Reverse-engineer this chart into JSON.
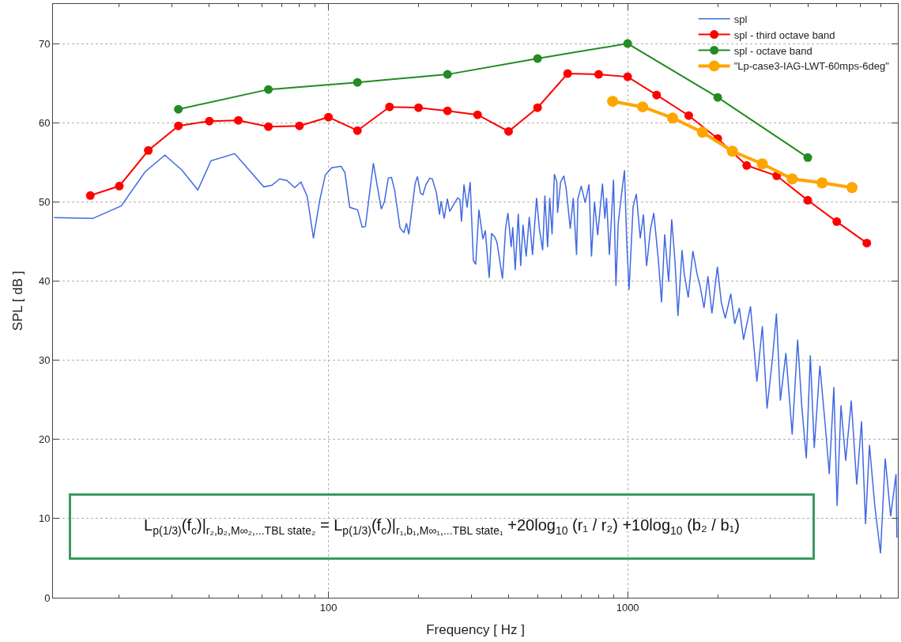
{
  "chart_data": {
    "type": "line",
    "xlabel": "Frequency [ Hz ]",
    "ylabel": "SPL [ dB ]",
    "log": "x",
    "grid": true,
    "legend": "top right",
    "marker": "circle",
    "xlim": [
      12,
      8000
    ],
    "ylim": [
      0,
      75
    ],
    "xticks": [
      {
        "value": 20,
        "label": null
      },
      {
        "value": 30,
        "label": null
      },
      {
        "value": 40,
        "label": null
      },
      {
        "value": 50,
        "label": null
      },
      {
        "value": 60,
        "label": null
      },
      {
        "value": 70,
        "label": null
      },
      {
        "value": 80,
        "label": null
      },
      {
        "value": 90,
        "label": null
      },
      100,
      {
        "value": 200,
        "label": null
      },
      {
        "value": 300,
        "label": null
      },
      {
        "value": 400,
        "label": null
      },
      {
        "value": 500,
        "label": null
      },
      {
        "value": 600,
        "label": null
      },
      {
        "value": 700,
        "label": null
      },
      {
        "value": 800,
        "label": null
      },
      {
        "value": 900,
        "label": null
      },
      1000,
      {
        "value": 2000,
        "label": null
      },
      {
        "value": 3000,
        "label": null
      },
      {
        "value": 4000,
        "label": null
      },
      {
        "value": 5000,
        "label": null
      },
      {
        "value": 6000,
        "label": null
      },
      {
        "value": 7000,
        "label": null
      },
      {
        "value": 8000,
        "label": null
      }
    ],
    "yticks": [
      0,
      10,
      20,
      30,
      40,
      50,
      60,
      70
    ],
    "series": [
      {
        "name": "spl",
        "color": "#4169e1",
        "marker": "none",
        "x": [
          12.1,
          16.3,
          20.3,
          24.4,
          28.4,
          32.4,
          36.6,
          40.5,
          48.6,
          60.8,
          64.7,
          68.7,
          72.6,
          77.1,
          80.9,
          84.9,
          89.1,
          93.5,
          97.6,
          102.4,
          110.2,
          113.5,
          117.8,
          125.1,
          129.7,
          132.9,
          141.3,
          150.1,
          153.8,
          158.5,
          162.4,
          166.4,
          173.5,
          178.9,
          182.3,
          185.6,
          194.8,
          198.3,
          203.1,
          206.9,
          211.8,
          218.3,
          222.4,
          229.4,
          235.2,
          237.9,
          243.7,
          249.7,
          254.3,
          270.2,
          275.0,
          278.4,
          283.8,
          290.6,
          297.7,
          305,
          310.6,
          318.3,
          328.3,
          334.4,
          344.6,
          350.8,
          359.3,
          365.8,
          381.7,
          391,
          398,
          408,
          413,
          421,
          431,
          439,
          447,
          458,
          469,
          481,
          496,
          507,
          520,
          529,
          540,
          549,
          559,
          569,
          580,
          583,
          597,
          612,
          623,
          643,
          658,
          675,
          682,
          700,
          721,
          743,
          757,
          775,
          794,
          824,
          839,
          850,
          869,
          897,
          914,
          930,
          953,
          976,
          993,
          1011,
          1043,
          1069,
          1102,
          1129,
          1157,
          1193,
          1223,
          1267,
          1298,
          1330,
          1371,
          1404,
          1439,
          1473,
          1520,
          1546,
          1594,
          1652,
          1706,
          1748,
          1800,
          1855,
          1913,
          1995,
          2056,
          2120,
          2212,
          2280,
          2363,
          2440,
          2575,
          2704,
          2820,
          2924,
          3050,
          3143,
          3240,
          3380,
          3548,
          3700,
          3817,
          3955,
          4080,
          4205,
          4390,
          4580,
          4720,
          4890,
          5012,
          5165,
          5355,
          5590,
          5830,
          6050,
          6240,
          6430,
          6700,
          7000,
          7260,
          7570,
          7890,
          7943
        ],
        "values": [
          48.0,
          47.9,
          49.5,
          53.8,
          55.9,
          54.0,
          51.5,
          55.2,
          56.1,
          51.9,
          52.1,
          52.9,
          52.7,
          51.8,
          52.5,
          50.7,
          45.4,
          50.2,
          53.4,
          54.3,
          54.5,
          53.7,
          49.3,
          49.0,
          46.8,
          46.9,
          54.9,
          49.1,
          50.0,
          53.0,
          53.1,
          51.5,
          46.7,
          46.1,
          47.3,
          45.9,
          52.3,
          53.2,
          51.1,
          50.9,
          52.2,
          53.0,
          52.9,
          51.2,
          48.4,
          50.1,
          47.9,
          50.4,
          48.8,
          50.5,
          50.3,
          47.5,
          52.2,
          49.3,
          52.5,
          42.6,
          42.1,
          49.0,
          45.3,
          46.4,
          40.4,
          46.0,
          45.6,
          44.9,
          40.3,
          46.7,
          48.6,
          44.3,
          46.8,
          41.4,
          48.5,
          41.9,
          47.1,
          43.1,
          48.1,
          43.3,
          50.5,
          46.6,
          43.9,
          50.8,
          44.3,
          50.5,
          45.9,
          53.5,
          52.5,
          48.6,
          52.5,
          53.3,
          51.7,
          46.6,
          50.5,
          43.3,
          50.4,
          52.0,
          49.9,
          52.2,
          43.1,
          50.0,
          45.8,
          52.3,
          47.9,
          50.5,
          43.3,
          52.8,
          39.4,
          47.3,
          50.8,
          54.0,
          44.9,
          38.9,
          49.4,
          51.0,
          45.4,
          48.4,
          41.9,
          46.6,
          48.6,
          42.6,
          37.3,
          45.9,
          39.9,
          47.8,
          42.6,
          35.6,
          43.9,
          40.9,
          37.9,
          43.8,
          40.9,
          39.3,
          36.6,
          40.6,
          35.9,
          41.8,
          37.3,
          35.3,
          38.4,
          34.6,
          36.6,
          32.6,
          36.8,
          27.3,
          34.3,
          23.9,
          30.3,
          35.9,
          24.9,
          30.9,
          20.6,
          32.6,
          24.3,
          17.6,
          30.6,
          18.9,
          29.3,
          21.6,
          15.6,
          26.6,
          11.6,
          24.3,
          17.3,
          24.9,
          14.3,
          22.3,
          9.3,
          19.3,
          11.6,
          5.6,
          17.6,
          10.3,
          15.6,
          7.6
        ]
      },
      {
        "name": "spl - third octave band",
        "color": "#ff0000",
        "x": [
          16,
          20,
          25,
          31.5,
          40,
          50,
          63,
          80,
          100,
          125,
          160,
          200,
          250,
          315,
          400,
          500,
          630,
          800,
          1000,
          1250,
          1600,
          2000,
          2500,
          3150,
          4000,
          5000,
          6300
        ],
        "values": [
          50.8,
          52.0,
          56.5,
          59.6,
          60.2,
          60.3,
          59.5,
          59.6,
          60.7,
          59.0,
          62.0,
          61.9,
          61.5,
          61.0,
          58.9,
          61.9,
          66.2,
          66.1,
          65.8,
          63.5,
          60.9,
          58.0,
          54.6,
          53.3,
          50.2,
          47.5,
          44.8
        ]
      },
      {
        "name": "spl - octave band",
        "color": "#228b22",
        "x": [
          31.5,
          63,
          125,
          250,
          500,
          1000,
          2000,
          4000
        ],
        "values": [
          61.7,
          64.2,
          65.1,
          66.1,
          68.1,
          70.0,
          63.2,
          55.6
        ]
      },
      {
        "name": "\"Lp-case3-IAG-LWT-60mps-6deg\"",
        "color": "#ffa500",
        "x": [
          891,
          1122,
          1413,
          1778,
          2239,
          2818,
          3548,
          4467,
          5623
        ],
        "values": [
          62.7,
          62.0,
          60.6,
          58.8,
          56.4,
          54.8,
          52.9,
          52.4,
          51.8
        ]
      }
    ],
    "annotations": [
      "L$_{p(1/3)}$(f$_{c}$)|$_{r₂,b₂,M∞₂,...TBL state₂}$ = L$_{p(1/3)}$(f$_{c}$)|$_{r₁,b₁,M∞₁,...TBL state₁}$ +20log$_{10}$ (r₁ / r₂) +10log$_{10}$ (b₂ / b₁)"
    ]
  }
}
